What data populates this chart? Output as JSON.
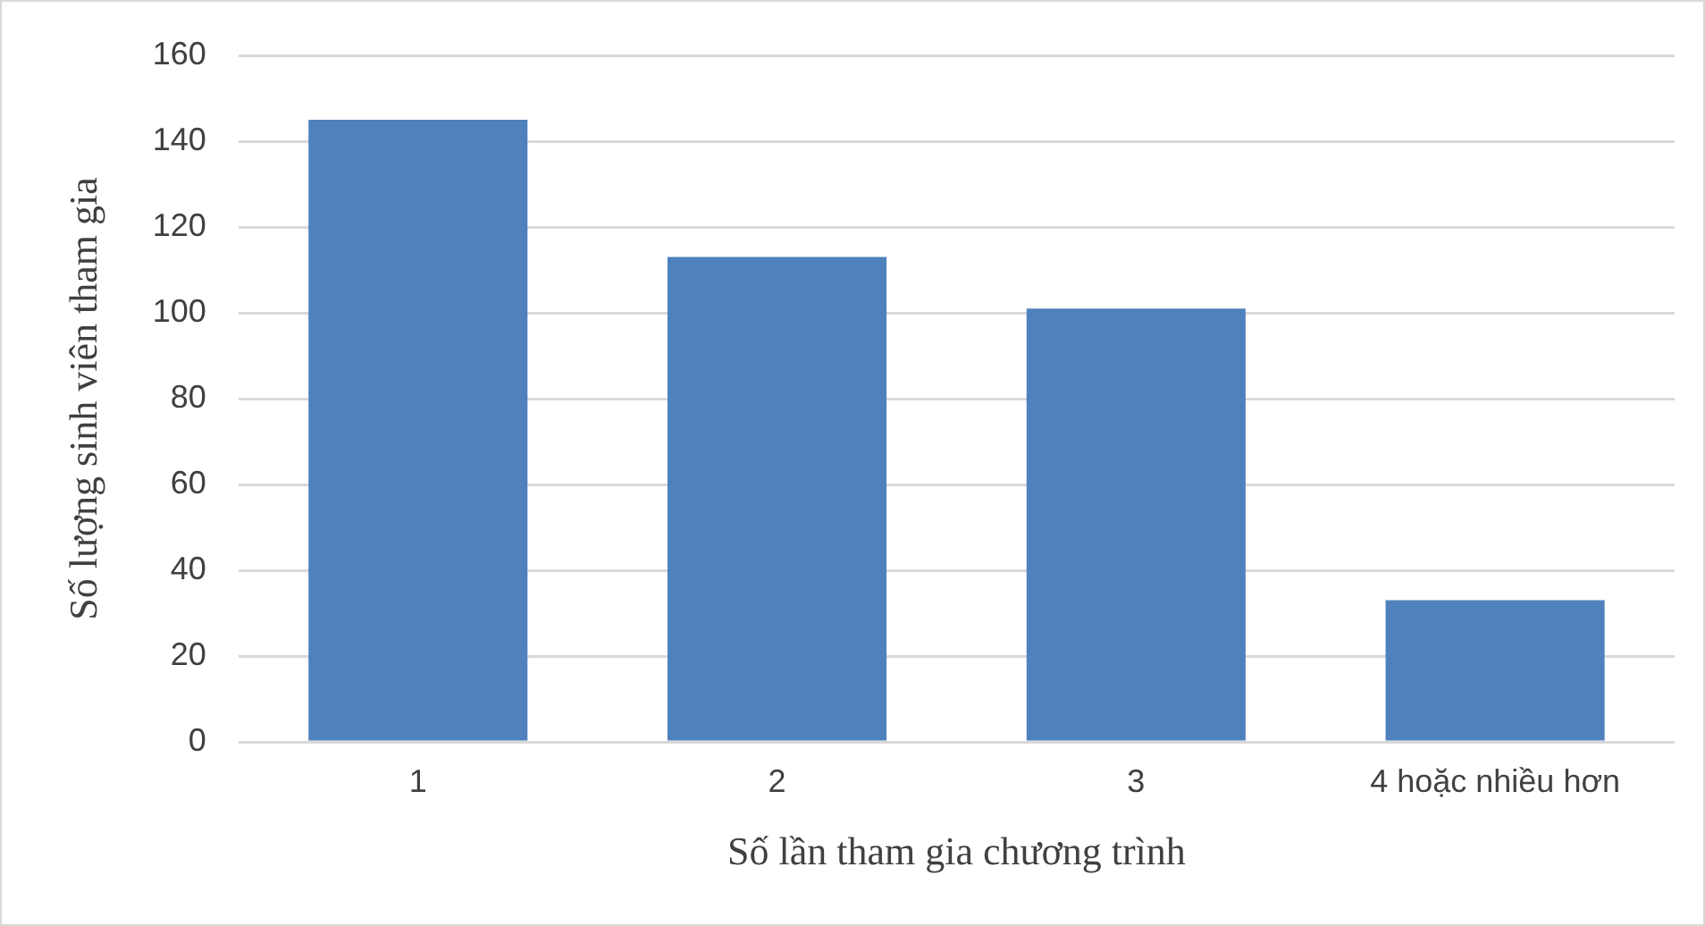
{
  "chart_data": {
    "type": "bar",
    "xlabel": "Số lần tham gia chương trình",
    "ylabel": "Số lượng sinh viên tham gia",
    "categories": [
      "1",
      "2",
      "3",
      "4 hoặc nhiều hơn"
    ],
    "values": [
      145,
      113,
      101,
      33
    ],
    "color": "#4f81bd",
    "ylim": [
      0,
      160
    ],
    "yticks": [
      0,
      20,
      40,
      60,
      80,
      100,
      120,
      140,
      160
    ],
    "grid": "y"
  }
}
